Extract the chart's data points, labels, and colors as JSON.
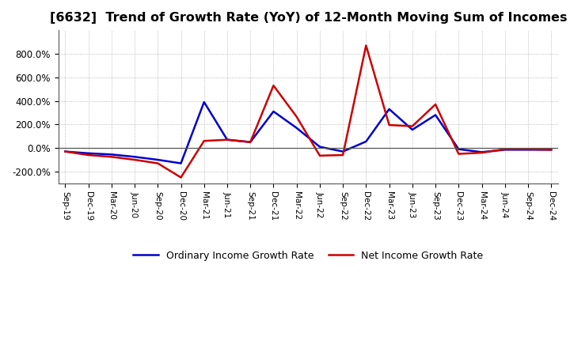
{
  "title": "[6632]  Trend of Growth Rate (YoY) of 12-Month Moving Sum of Incomes",
  "title_fontsize": 11.5,
  "ylim": [
    -300,
    1000
  ],
  "yticks": [
    -200,
    0,
    200,
    400,
    600,
    800
  ],
  "background_color": "#ffffff",
  "grid_color": "#aaaaaa",
  "legend_labels": [
    "Ordinary Income Growth Rate",
    "Net Income Growth Rate"
  ],
  "legend_colors": [
    "#0000cc",
    "#cc0000"
  ],
  "x_labels": [
    "Sep-19",
    "Dec-19",
    "Mar-20",
    "Jun-20",
    "Sep-20",
    "Dec-20",
    "Mar-21",
    "Jun-21",
    "Sep-21",
    "Dec-21",
    "Mar-22",
    "Jun-22",
    "Sep-22",
    "Dec-22",
    "Mar-23",
    "Jun-23",
    "Sep-23",
    "Dec-23",
    "Mar-24",
    "Jun-24",
    "Sep-24",
    "Dec-24"
  ],
  "ordinary_income": [
    -30,
    -45,
    -55,
    -75,
    -100,
    -130,
    390,
    70,
    50,
    310,
    170,
    10,
    -30,
    55,
    330,
    155,
    280,
    -10,
    -35,
    -15,
    -15,
    -15
  ],
  "net_income": [
    -30,
    -60,
    -75,
    -100,
    -130,
    -250,
    60,
    70,
    50,
    530,
    265,
    -65,
    -60,
    870,
    195,
    185,
    370,
    -50,
    -40,
    -10,
    -10,
    -15
  ]
}
